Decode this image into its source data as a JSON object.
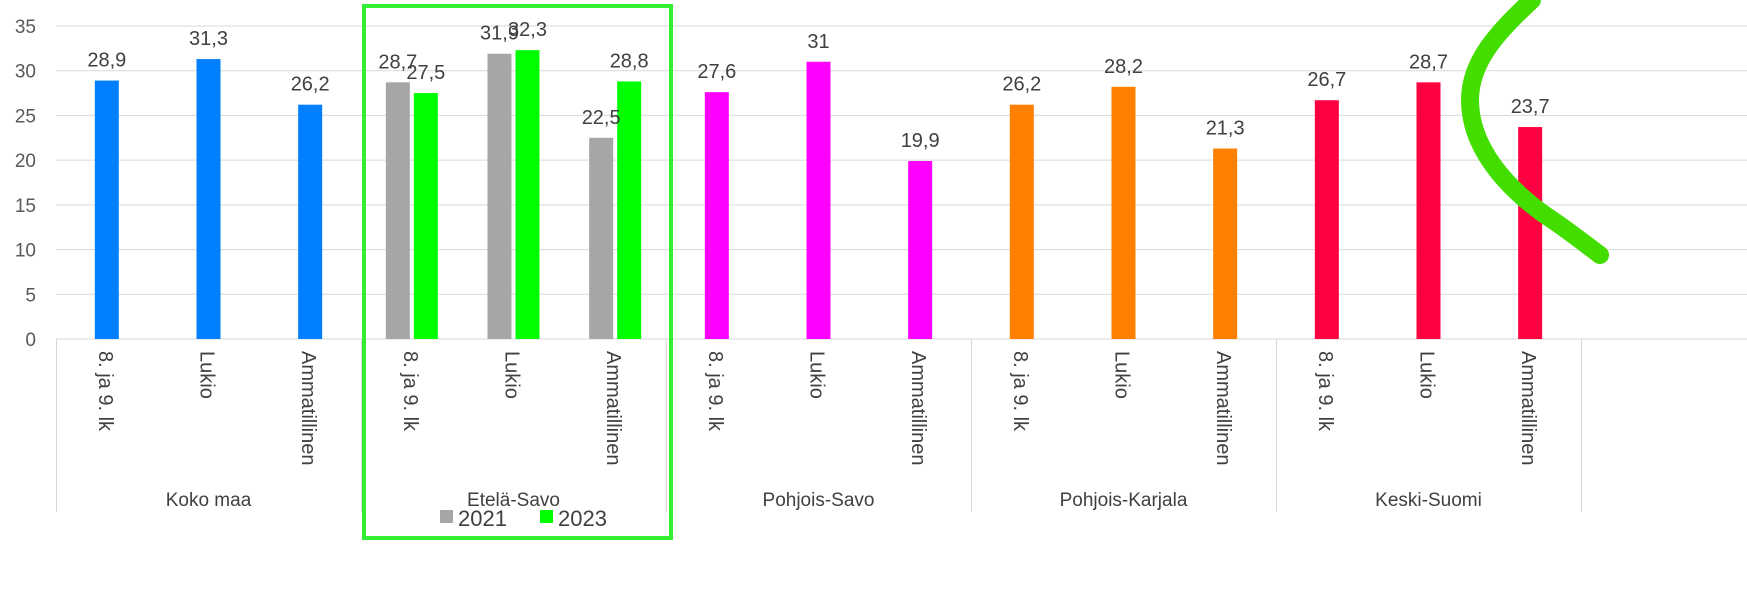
{
  "chart_data": {
    "type": "bar",
    "ylim": [
      0,
      35
    ],
    "yticks": [
      0,
      5,
      10,
      15,
      20,
      25,
      30,
      35
    ],
    "grid": true,
    "legend": {
      "placement": "bottom",
      "entries": [
        "2021",
        "2023"
      ]
    },
    "colors": {
      "2021": "#a6a6a6",
      "2023": "#00ff00",
      "Koko maa": "#0080ff",
      "Pohjois-Savo": "#ff00ff",
      "Pohjois-Karjala": "#ff8000",
      "Keski-Suomi": "#ff0040",
      "highlight": "#33ee33",
      "gridline": "#d9d9d9"
    },
    "groups": [
      {
        "name": "Koko maa",
        "categories": [
          "8. ja 9. lk",
          "Lukio",
          "Ammatillinen"
        ],
        "series": [
          {
            "values": [
              28.9,
              31.3,
              26.2
            ],
            "labels": [
              "28,9",
              "31,3",
              "26,2"
            ],
            "color": "#0080ff"
          }
        ]
      },
      {
        "name": "Etelä-Savo",
        "categories": [
          "8. ja 9. lk",
          "Lukio",
          "Ammatillinen"
        ],
        "highlighted": true,
        "series": [
          {
            "name": "2021",
            "values": [
              28.7,
              31.9,
              22.5
            ],
            "labels": [
              "28,7",
              "31,9",
              "22,5"
            ],
            "color": "#a6a6a6"
          },
          {
            "name": "2023",
            "values": [
              27.5,
              32.3,
              28.8
            ],
            "labels": [
              "27,5",
              "32,3",
              "28,8"
            ],
            "color": "#00ff00"
          }
        ]
      },
      {
        "name": "Pohjois-Savo",
        "categories": [
          "8. ja 9. lk",
          "Lukio",
          "Ammatillinen"
        ],
        "series": [
          {
            "values": [
              27.6,
              31,
              19.9
            ],
            "labels": [
              "27,6",
              "31",
              "19,9"
            ],
            "color": "#ff00ff"
          }
        ]
      },
      {
        "name": "Pohjois-Karjala",
        "categories": [
          "8. ja 9. lk",
          "Lukio",
          "Ammatillinen"
        ],
        "series": [
          {
            "values": [
              26.2,
              28.2,
              21.3
            ],
            "labels": [
              "26,2",
              "28,2",
              "21,3"
            ],
            "color": "#ff8000"
          }
        ]
      },
      {
        "name": "Keski-Suomi",
        "categories": [
          "8. ja 9. lk",
          "Lukio",
          "Ammatillinen"
        ],
        "series": [
          {
            "values": [
              26.7,
              28.7,
              23.7
            ],
            "labels": [
              "26,7",
              "28,7",
              "23,7"
            ],
            "color": "#ff0040"
          }
        ]
      }
    ]
  }
}
